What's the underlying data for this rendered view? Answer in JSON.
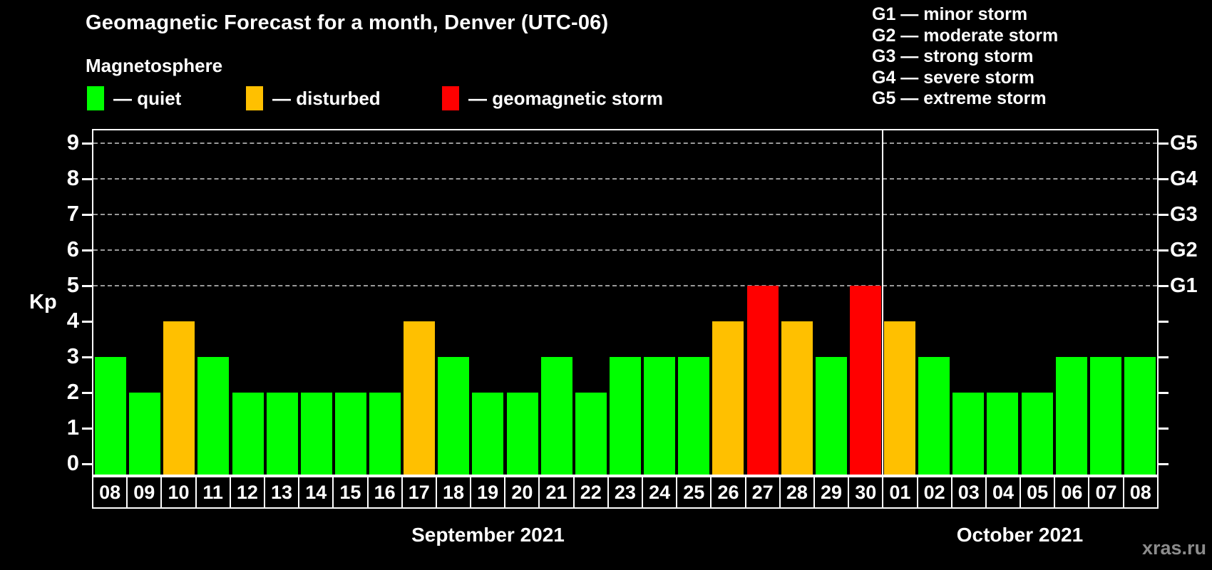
{
  "header": {
    "title": "Geomagnetic Forecast for a month, Denver (UTC-06)",
    "subtitle": "Magnetosphere"
  },
  "legend": {
    "items": [
      {
        "label": "— quiet",
        "status": "quiet"
      },
      {
        "label": "— disturbed",
        "status": "disturbed"
      },
      {
        "label": "— geomagnetic storm",
        "status": "storm"
      }
    ]
  },
  "g_legend": {
    "items": [
      "G1 — minor storm",
      "G2 — moderate storm",
      "G3 — strong storm",
      "G4 — severe storm",
      "G5 — extreme storm"
    ]
  },
  "colors": {
    "quiet": "#00ff00",
    "disturbed": "#ffc000",
    "storm": "#ff0000",
    "axis": "#ffffff",
    "grid": "#9a9a9a",
    "watermark": "#8c8c8c",
    "background": "#000000"
  },
  "watermark": "xras.ru",
  "chart_data": {
    "type": "bar",
    "title": "Geomagnetic Forecast for a month, Denver (UTC-06)",
    "xlabel": "",
    "ylabel": "Kp",
    "ylim": [
      0,
      9
    ],
    "yticks": [
      0,
      1,
      2,
      3,
      4,
      5,
      6,
      7,
      8,
      9
    ],
    "grid": "dashed horizontal lines at Kp 5-9 only",
    "legend_position": "top-left",
    "right_axis": [
      {
        "label": "G1",
        "kp": 5
      },
      {
        "label": "G2",
        "kp": 6
      },
      {
        "label": "G3",
        "kp": 7
      },
      {
        "label": "G4",
        "kp": 8
      },
      {
        "label": "G5",
        "kp": 9
      }
    ],
    "months": [
      {
        "label": "September 2021",
        "days": 23
      },
      {
        "label": "October 2021",
        "days": 8
      }
    ],
    "bars": [
      {
        "date": "08",
        "kp": 3,
        "status": "quiet"
      },
      {
        "date": "09",
        "kp": 2,
        "status": "quiet"
      },
      {
        "date": "10",
        "kp": 4,
        "status": "disturbed"
      },
      {
        "date": "11",
        "kp": 3,
        "status": "quiet"
      },
      {
        "date": "12",
        "kp": 2,
        "status": "quiet"
      },
      {
        "date": "13",
        "kp": 2,
        "status": "quiet"
      },
      {
        "date": "14",
        "kp": 2,
        "status": "quiet"
      },
      {
        "date": "15",
        "kp": 2,
        "status": "quiet"
      },
      {
        "date": "16",
        "kp": 2,
        "status": "quiet"
      },
      {
        "date": "17",
        "kp": 4,
        "status": "disturbed"
      },
      {
        "date": "18",
        "kp": 3,
        "status": "quiet"
      },
      {
        "date": "19",
        "kp": 2,
        "status": "quiet"
      },
      {
        "date": "20",
        "kp": 2,
        "status": "quiet"
      },
      {
        "date": "21",
        "kp": 3,
        "status": "quiet"
      },
      {
        "date": "22",
        "kp": 2,
        "status": "quiet"
      },
      {
        "date": "23",
        "kp": 3,
        "status": "quiet"
      },
      {
        "date": "24",
        "kp": 3,
        "status": "quiet"
      },
      {
        "date": "25",
        "kp": 3,
        "status": "quiet"
      },
      {
        "date": "26",
        "kp": 4,
        "status": "disturbed"
      },
      {
        "date": "27",
        "kp": 5,
        "status": "storm"
      },
      {
        "date": "28",
        "kp": 4,
        "status": "disturbed"
      },
      {
        "date": "29",
        "kp": 3,
        "status": "quiet"
      },
      {
        "date": "30",
        "kp": 5,
        "status": "storm"
      },
      {
        "date": "01",
        "kp": 4,
        "status": "disturbed"
      },
      {
        "date": "02",
        "kp": 3,
        "status": "quiet"
      },
      {
        "date": "03",
        "kp": 2,
        "status": "quiet"
      },
      {
        "date": "04",
        "kp": 2,
        "status": "quiet"
      },
      {
        "date": "05",
        "kp": 2,
        "status": "quiet"
      },
      {
        "date": "06",
        "kp": 3,
        "status": "quiet"
      },
      {
        "date": "07",
        "kp": 3,
        "status": "quiet"
      },
      {
        "date": "08",
        "kp": 3,
        "status": "quiet"
      }
    ]
  }
}
